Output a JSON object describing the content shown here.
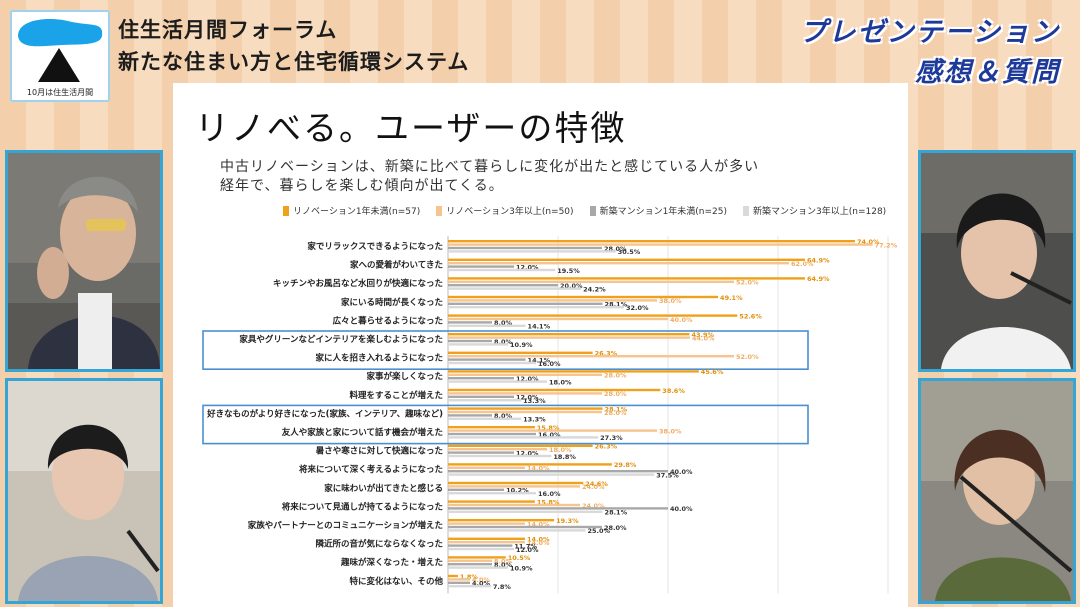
{
  "header": {
    "logo_caption": "10月は住生活月間",
    "title_line1": "住生活月間フォーラム",
    "title_line2": "新たな住まい方と住宅循環システム",
    "corner_line1": "プレゼンテーション",
    "corner_line2": "感想＆質問"
  },
  "slide": {
    "title": "リノべる。ユーザーの特徴",
    "sub_line1": "中古リノベーションは、新築に比べて暮らしに変化が出たと感じている人が多い",
    "sub_line2": "経年で、暮らしを楽しむ傾向が出てくる。"
  },
  "colors": {
    "s1": "#f0a11c",
    "s2": "#f6c48e",
    "s3": "#a8a8a8",
    "s4": "#d9d9d9",
    "highlight_box": "#4a8fd1",
    "panel_border": "#35a5d6"
  },
  "chart_data": {
    "type": "bar",
    "orientation": "horizontal",
    "series": [
      {
        "name": "リノベーション1年未満(n=57)",
        "values": [
          74.0,
          64.9,
          64.9,
          49.1,
          52.6,
          43.9,
          26.3,
          45.6,
          38.6,
          28.1,
          15.8,
          26.3,
          29.8,
          24.6,
          15.8,
          19.3,
          14.0,
          10.5,
          1.8
        ]
      },
      {
        "name": "リノベーション3年以上(n=50)",
        "values": [
          77.2,
          62.0,
          52.0,
          38.0,
          40.0,
          44.0,
          52.0,
          28.0,
          28.0,
          28.0,
          38.0,
          18.0,
          14.0,
          24.0,
          24.0,
          14.0,
          14.0,
          8.0,
          4.0
        ]
      },
      {
        "name": "新築マンション1年未満(n=25)",
        "values": [
          28.0,
          12.0,
          20.0,
          28.1,
          8.0,
          8.0,
          14.1,
          12.0,
          12.0,
          8.0,
          16.0,
          12.0,
          40.0,
          10.2,
          40.0,
          28.0,
          11.7,
          8.0,
          4.0
        ]
      },
      {
        "name": "新築マンション3年以上(n=128)",
        "values": [
          30.5,
          19.5,
          24.2,
          32.0,
          14.1,
          10.9,
          16.0,
          18.0,
          13.3,
          13.3,
          27.3,
          18.8,
          37.5,
          16.0,
          28.1,
          25.0,
          12.0,
          10.9,
          7.8
        ]
      }
    ],
    "value_labels": [
      [
        "74.0%",
        "64.9%",
        "64.9%",
        "49.1%",
        "52.6%",
        "43.9%",
        "26.3%",
        "45.6%",
        "38.6%",
        "28.1%",
        "15.8%",
        "26.3%",
        "29.8%",
        "24.6%",
        "15.8%",
        "19.3%",
        "14.0%",
        "10.5%",
        "1.8%"
      ],
      [
        "77.2%",
        "62.0%",
        "52.0%",
        "38.0%",
        "40.0%",
        "44.0%",
        "52.0%",
        "28.0%",
        "28.0%",
        "28.0%",
        "38.0%",
        "18.0%",
        "14.0%",
        "24.0%",
        "24.0%",
        "14.0%",
        "14.0%",
        "8.0%",
        "4.0%"
      ],
      [
        "28.0%",
        "12.0%",
        "20.0%",
        "28.1%",
        "8.0%",
        "8.0%",
        "14.1%",
        "12.0%",
        "12.0%",
        "8.0%",
        "16.0%",
        "12.0%",
        "40.0%",
        "10.2%",
        "40.0%",
        "28.0%",
        "11.7%",
        "8.0%",
        "4.0%"
      ],
      [
        "30.5%",
        "19.5%",
        "24.2%",
        "32.0%",
        "14.1%",
        "10.9%",
        "16.0%",
        "18.0%",
        "13.3%",
        "13.3%",
        "27.3%",
        "18.8%",
        "37.5%",
        "16.0%",
        "28.1%",
        "25.0%",
        "12.0%",
        "10.9%",
        "7.8%"
      ]
    ],
    "categories": [
      "家でリラックスできるようになった",
      "家への愛着がわいてきた",
      "キッチンやお風呂など水回りが快適になった",
      "家にいる時間が長くなった",
      "広々と暮らせるようになった",
      "家具やグリーンなどインテリアを楽しむようになった",
      "家に人を招き入れるようになった",
      "家事が楽しくなった",
      "料理をすることが増えた",
      "好きなものがより好きになった(家族、インテリア、趣味など)",
      "友人や家族と家について話す機会が増えた",
      "暑さや寒さに対して快適になった",
      "将来について深く考えるようになった",
      "家に味わいが出てきたと感じる",
      "将来について見通しが持てるようになった",
      "家族やパートナーとのコミュニケーションが増えた",
      "隣近所の音が気にならなくなった",
      "趣味が深くなった・増えた",
      "特に変化はない、その他"
    ],
    "highlighted_groups": [
      [
        5,
        6
      ],
      [
        9,
        10
      ]
    ],
    "xlim": [
      0,
      80
    ],
    "grid": true
  }
}
